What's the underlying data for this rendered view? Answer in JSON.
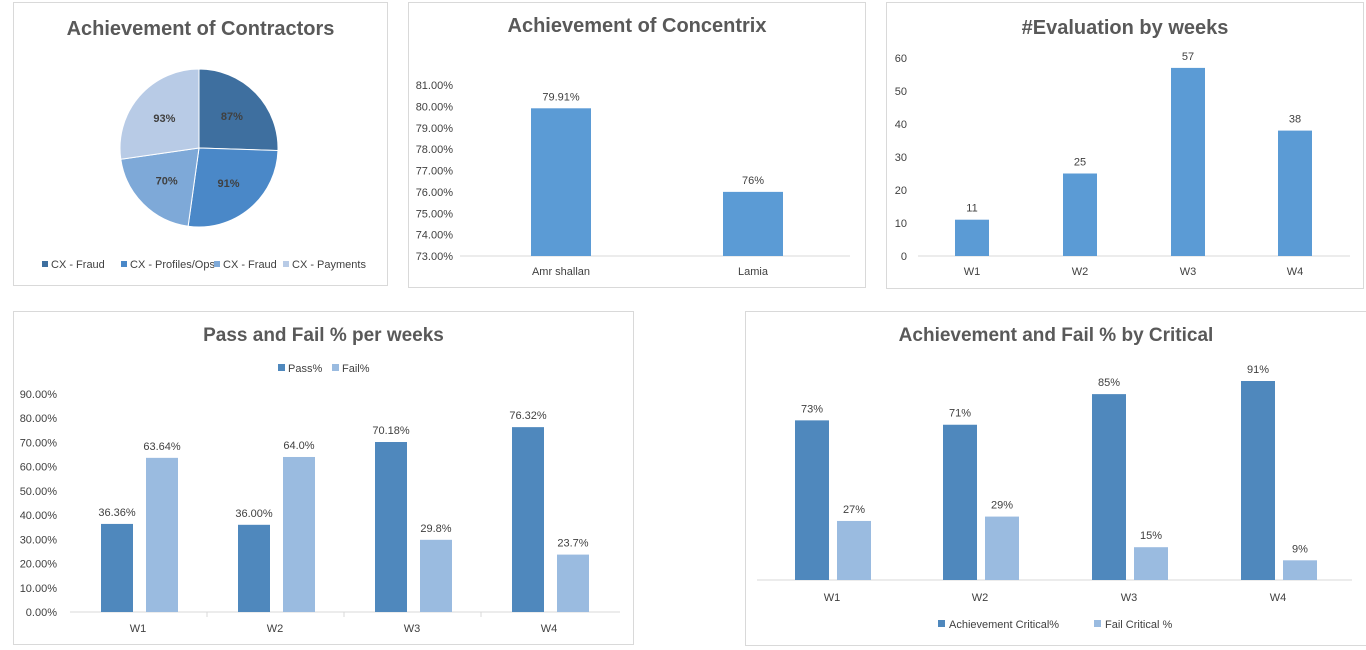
{
  "chart_data": [
    {
      "type": "pie",
      "title": "Achievement of Contractors",
      "categories": [
        "CX - Fraud",
        "CX - Profiles/Ops",
        "CX - Fraud",
        "CX - Payments"
      ],
      "values": [
        87,
        91,
        70,
        93
      ],
      "labels": [
        "87%",
        "91%",
        "70%",
        "93%"
      ],
      "colors": [
        "#3e6f9f",
        "#4a88c8",
        "#7ea9d8",
        "#b8cbe6"
      ],
      "legend": "bottom"
    },
    {
      "type": "bar",
      "title": "Achievement of Concentrix",
      "categories": [
        "Amr shallan",
        "Lamia"
      ],
      "values": [
        79.91,
        76
      ],
      "labels": [
        "79.91%",
        "76%"
      ],
      "ylim": [
        73,
        81
      ],
      "yticks": [
        "73.00%",
        "74.00%",
        "75.00%",
        "76.00%",
        "77.00%",
        "78.00%",
        "79.00%",
        "80.00%",
        "81.00%"
      ],
      "color": "#5b9bd5",
      "grid": false
    },
    {
      "type": "bar",
      "title": "#Evaluation by weeks",
      "categories": [
        "W1",
        "W2",
        "W3",
        "W4"
      ],
      "values": [
        11,
        25,
        57,
        38
      ],
      "labels": [
        "11",
        "25",
        "57",
        "38"
      ],
      "ylim": [
        0,
        60
      ],
      "yticks": [
        "0",
        "10",
        "20",
        "30",
        "40",
        "50",
        "60"
      ],
      "color": "#5b9bd5",
      "grid": false
    },
    {
      "type": "bar",
      "title": "Pass and Fail % per weeks",
      "categories": [
        "W1",
        "W2",
        "W3",
        "W4"
      ],
      "series": [
        {
          "name": "Pass%",
          "values": [
            36.36,
            36.0,
            70.18,
            76.32
          ],
          "labels": [
            "36.36%",
            "36.00%",
            "70.18%",
            "76.32%"
          ],
          "color": "#4f88bd"
        },
        {
          "name": "Fail%",
          "values": [
            63.64,
            64.0,
            29.8,
            23.7
          ],
          "labels": [
            "63.64%",
            "64.0%",
            "29.8%",
            "23.7%"
          ],
          "color": "#9abbe0"
        }
      ],
      "ylim": [
        0,
        90
      ],
      "yticks": [
        "0.00%",
        "10.00%",
        "20.00%",
        "30.00%",
        "40.00%",
        "50.00%",
        "60.00%",
        "70.00%",
        "80.00%",
        "90.00%"
      ],
      "legend": "top",
      "grid": false
    },
    {
      "type": "bar",
      "title": "Achievement and Fail % by Critical",
      "categories": [
        "W1",
        "W2",
        "W3",
        "W4"
      ],
      "series": [
        {
          "name": "Achievement Critical%",
          "values": [
            73,
            71,
            85,
            91
          ],
          "labels": [
            "73%",
            "71%",
            "85%",
            "91%"
          ],
          "color": "#4f88bd"
        },
        {
          "name": "Fail Critical %",
          "values": [
            27,
            29,
            15,
            9
          ],
          "labels": [
            "27%",
            "29%",
            "15%",
            "9%"
          ],
          "color": "#9abbe0"
        }
      ],
      "legend": "bottom",
      "grid": false
    }
  ]
}
